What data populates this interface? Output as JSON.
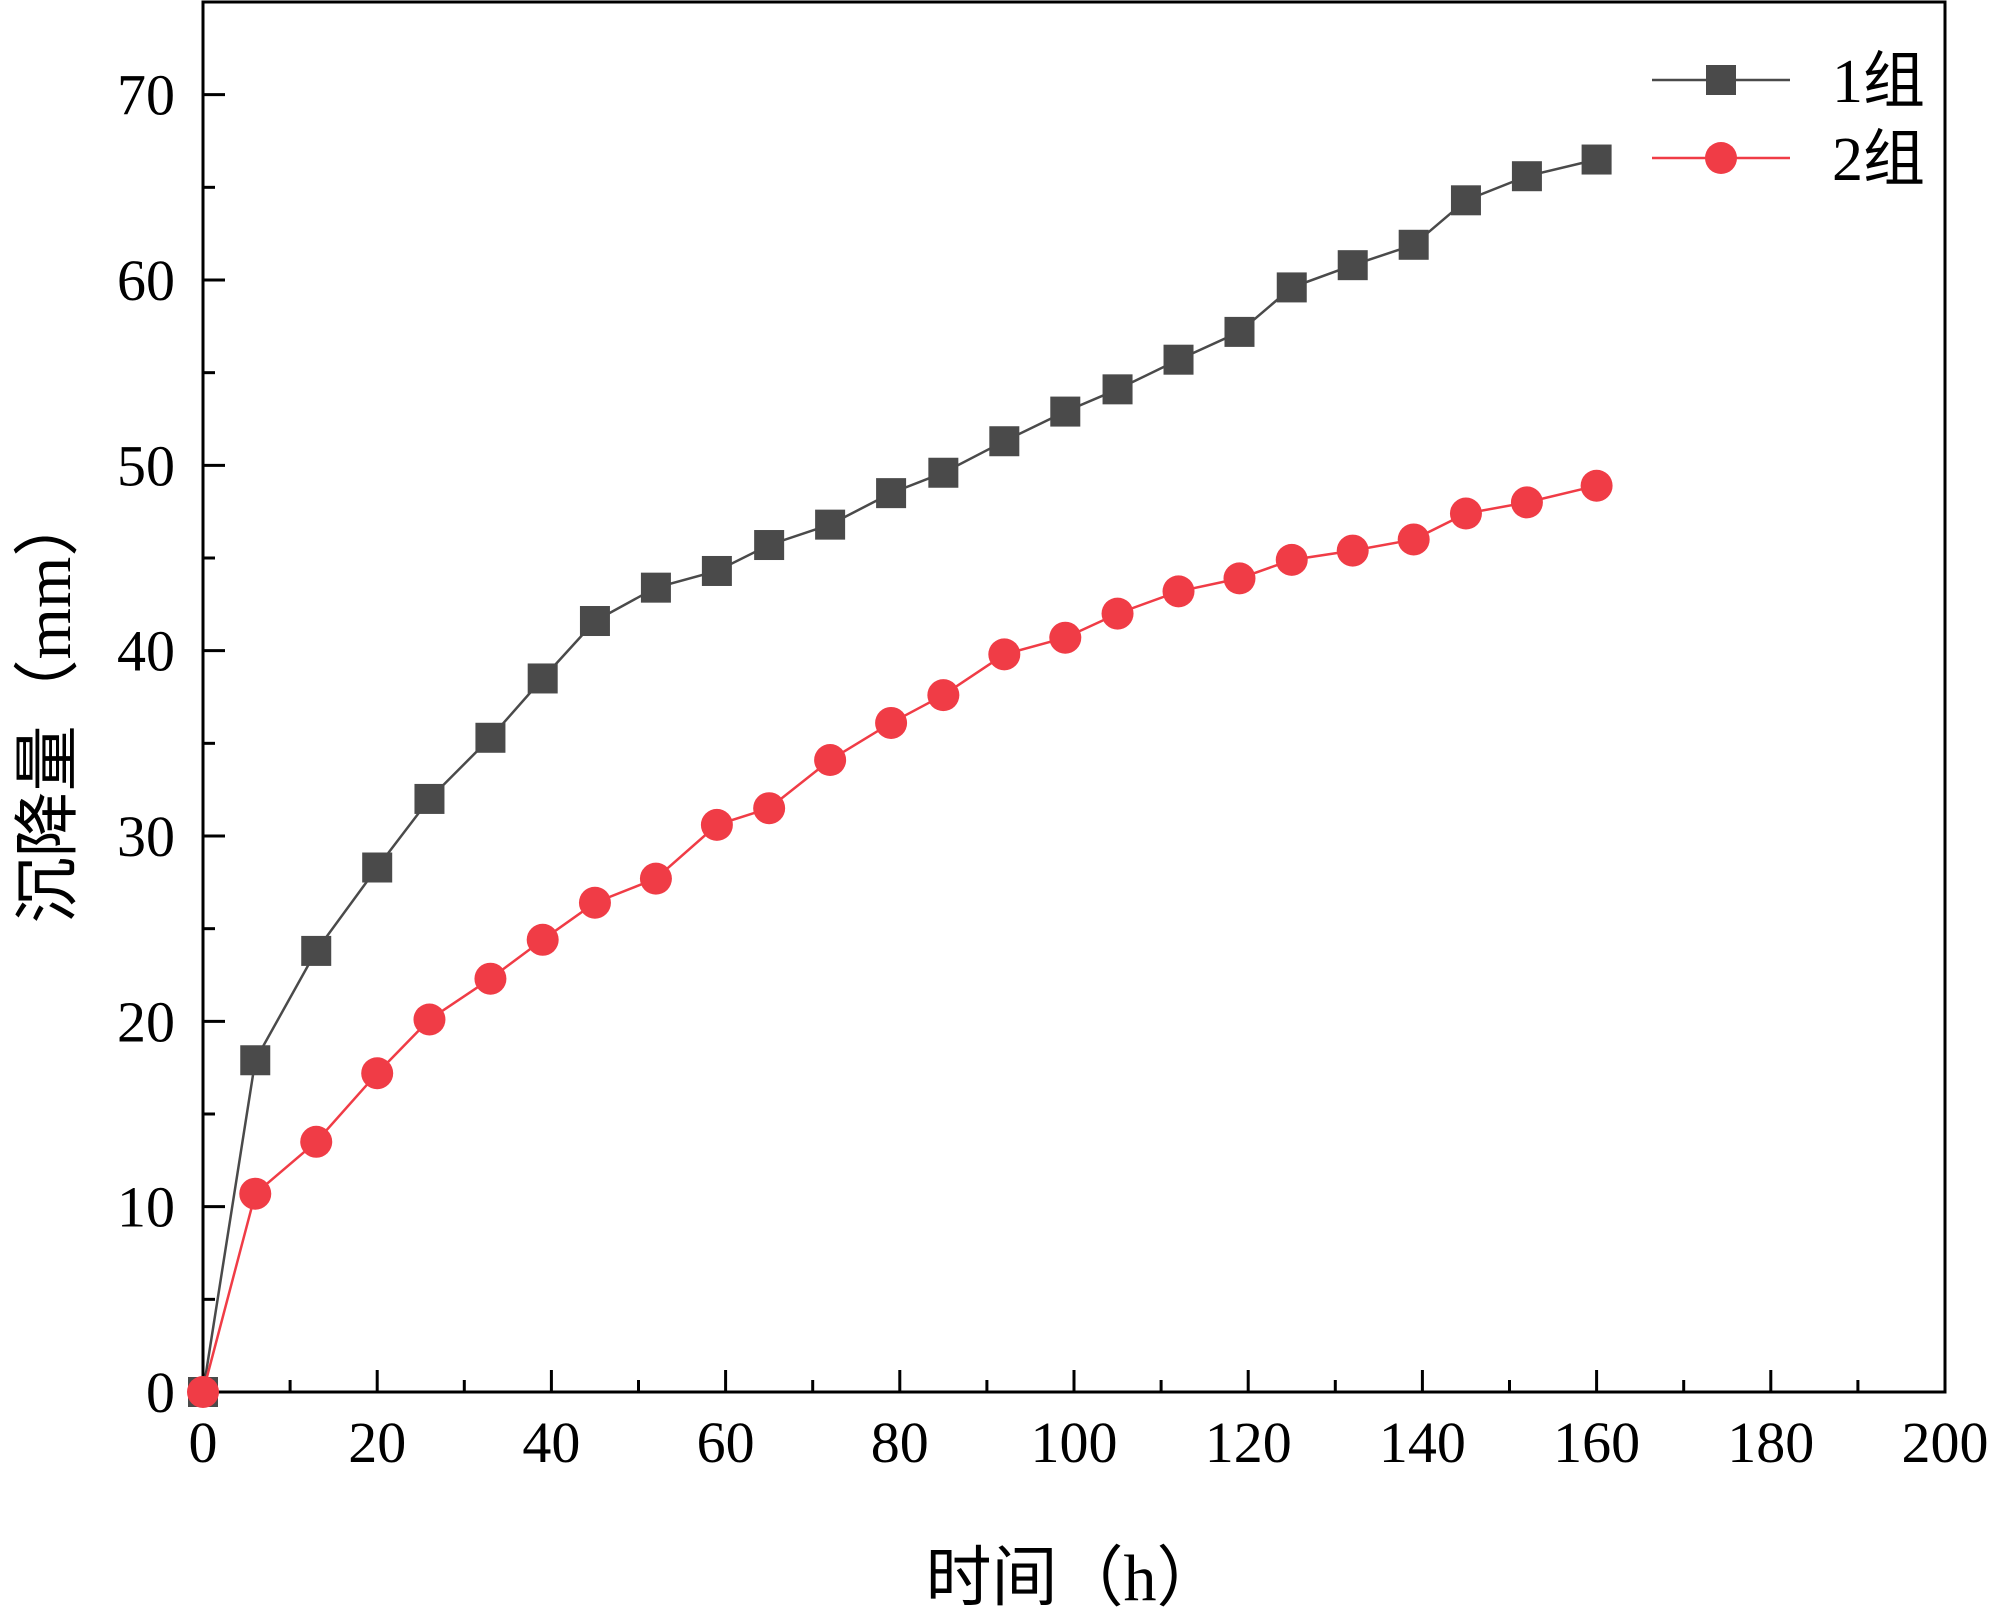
{
  "chart_data": {
    "type": "line",
    "title": "",
    "xlabel": "时间（h）",
    "ylabel": "沉降量（mm）",
    "xlim": [
      0,
      200
    ],
    "ylim": [
      0,
      75
    ],
    "xticks": [
      0,
      20,
      40,
      60,
      80,
      100,
      120,
      140,
      160,
      180,
      200
    ],
    "yticks": [
      0,
      10,
      20,
      30,
      40,
      50,
      60,
      70
    ],
    "x_minor_step": 10,
    "y_minor_step": 5,
    "grid": false,
    "legend_position": "top-right",
    "series": [
      {
        "name": "1组",
        "marker": "square",
        "color": "#4a4a4a",
        "x": [
          0,
          6,
          13,
          20,
          26,
          33,
          39,
          45,
          52,
          59,
          65,
          72,
          79,
          85,
          92,
          99,
          105,
          112,
          119,
          125,
          132,
          139,
          145,
          152,
          160
        ],
        "y": [
          0,
          17.9,
          23.8,
          28.3,
          32.0,
          35.3,
          38.5,
          41.6,
          43.4,
          44.3,
          45.7,
          46.8,
          48.5,
          49.6,
          51.3,
          52.9,
          54.1,
          55.7,
          57.2,
          59.6,
          60.8,
          61.9,
          64.3,
          65.6,
          66.5
        ]
      },
      {
        "name": "2组",
        "marker": "circle",
        "color": "#f03c46",
        "x": [
          0,
          6,
          13,
          20,
          26,
          33,
          39,
          45,
          52,
          59,
          65,
          72,
          79,
          85,
          92,
          99,
          105,
          112,
          119,
          125,
          132,
          139,
          145,
          152,
          160
        ],
        "y": [
          0,
          10.7,
          13.5,
          17.2,
          20.1,
          22.3,
          24.4,
          26.4,
          27.7,
          30.6,
          31.5,
          34.1,
          36.1,
          37.6,
          39.8,
          40.7,
          42.0,
          43.2,
          43.9,
          44.9,
          45.4,
          46.0,
          47.4,
          48.0,
          48.9
        ]
      }
    ]
  }
}
